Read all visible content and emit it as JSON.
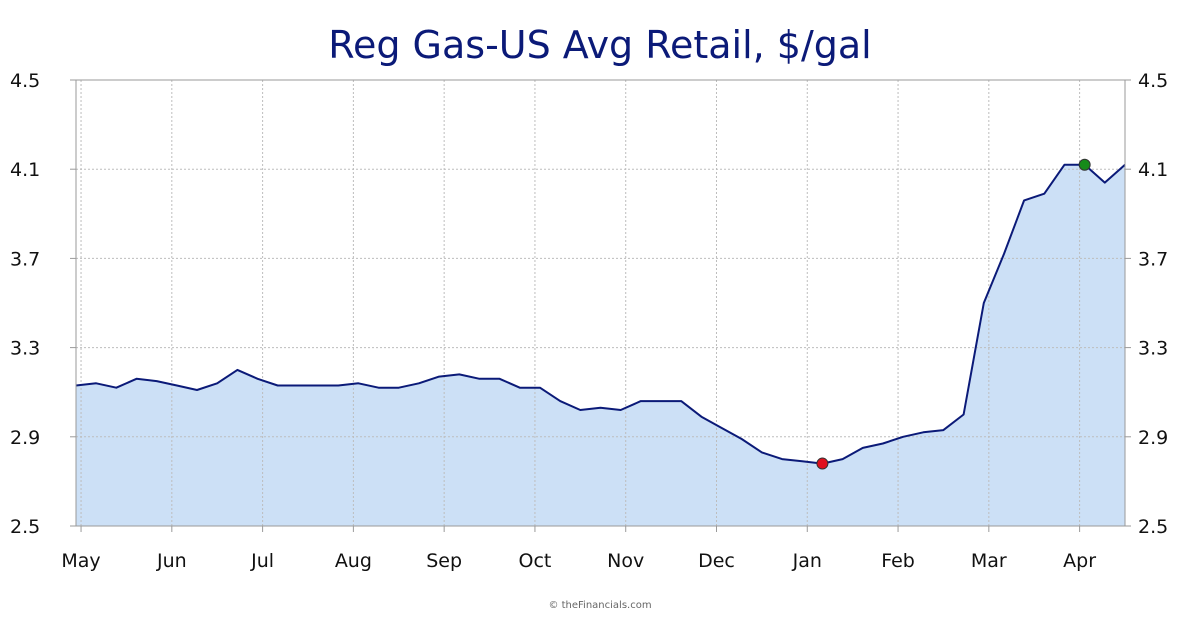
{
  "chart_data": {
    "type": "area",
    "title": "Reg Gas-US Avg Retail, $/gal",
    "xlabel": "",
    "ylabel": "",
    "ylim": [
      2.5,
      4.5
    ],
    "yticks": [
      "2.5",
      "2.9",
      "3.3",
      "3.7",
      "4.1",
      "4.5"
    ],
    "month_labels": [
      "May",
      "Jun",
      "Jul",
      "Aug",
      "Sep",
      "Oct",
      "Nov",
      "Dec",
      "Jan",
      "Feb",
      "Mar",
      "Apr"
    ],
    "grid": true,
    "series": [
      {
        "values": [
          3.13,
          3.14,
          3.12,
          3.16,
          3.15,
          3.13,
          3.11,
          3.14,
          3.2,
          3.16,
          3.13,
          3.13,
          3.13,
          3.13,
          3.14,
          3.12,
          3.12,
          3.14,
          3.17,
          3.18,
          3.16,
          3.16,
          3.12,
          3.12,
          3.06,
          3.02,
          3.03,
          3.02,
          3.06,
          3.06,
          3.06,
          2.99,
          2.94,
          2.89,
          2.83,
          2.8,
          2.79,
          2.78,
          2.8,
          2.85,
          2.87,
          2.9,
          2.92,
          2.93,
          3.0,
          3.5,
          3.72,
          3.96,
          3.99,
          4.12,
          4.12,
          4.04,
          4.12
        ],
        "min_index": 37,
        "max_index": 50
      }
    ],
    "colors": {
      "line": "#0b1a78",
      "area": "#cce0f6",
      "min_marker": "#e0101e",
      "max_marker": "#168a1a"
    }
  },
  "footer": {
    "copyright": "© theFinancials.com"
  }
}
